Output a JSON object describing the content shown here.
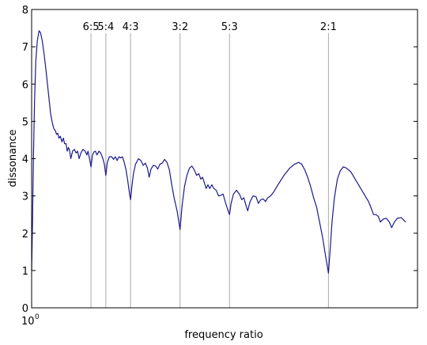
{
  "chart_data": {
    "type": "line",
    "title": "",
    "xlabel": "frequency ratio",
    "ylabel": "dissonance",
    "xlim": [
      1.0,
      2.3
    ],
    "ylim": [
      0,
      8
    ],
    "x_tick_label": "10",
    "x_tick_exponent": "0",
    "y_ticks": [
      0,
      1,
      2,
      3,
      4,
      5,
      6,
      7,
      8
    ],
    "y_tick_labels": [
      "0",
      "1",
      "2",
      "3",
      "4",
      "5",
      "6",
      "7",
      "8"
    ],
    "grid": false,
    "ratio_markers": [
      {
        "label": "6:5",
        "x": 1.2
      },
      {
        "label": "5:4",
        "x": 1.25
      },
      {
        "label": "4:3",
        "x": 1.3333
      },
      {
        "label": "3:2",
        "x": 1.5
      },
      {
        "label": "5:3",
        "x": 1.6667
      },
      {
        "label": "2:1",
        "x": 2.0
      }
    ],
    "series": [
      {
        "color": "#1a1a8c",
        "points": [
          [
            1.0,
            1.0
          ],
          [
            1.003,
            2.3
          ],
          [
            1.006,
            4.0
          ],
          [
            1.01,
            5.6
          ],
          [
            1.014,
            6.6
          ],
          [
            1.019,
            7.15
          ],
          [
            1.025,
            7.43
          ],
          [
            1.03,
            7.38
          ],
          [
            1.036,
            7.15
          ],
          [
            1.042,
            6.8
          ],
          [
            1.048,
            6.4
          ],
          [
            1.054,
            5.95
          ],
          [
            1.06,
            5.5
          ],
          [
            1.064,
            5.2
          ],
          [
            1.07,
            4.95
          ],
          [
            1.075,
            4.8
          ],
          [
            1.08,
            4.75
          ],
          [
            1.084,
            4.65
          ],
          [
            1.088,
            4.68
          ],
          [
            1.092,
            4.55
          ],
          [
            1.097,
            4.6
          ],
          [
            1.102,
            4.45
          ],
          [
            1.107,
            4.55
          ],
          [
            1.111,
            4.4
          ],
          [
            1.116,
            4.4
          ],
          [
            1.12,
            4.2
          ],
          [
            1.124,
            4.3
          ],
          [
            1.128,
            4.22
          ],
          [
            1.132,
            4.0
          ],
          [
            1.138,
            4.2
          ],
          [
            1.144,
            4.25
          ],
          [
            1.15,
            4.15
          ],
          [
            1.155,
            4.2
          ],
          [
            1.16,
            4.0
          ],
          [
            1.166,
            4.15
          ],
          [
            1.173,
            4.25
          ],
          [
            1.18,
            4.2
          ],
          [
            1.186,
            4.1
          ],
          [
            1.19,
            4.2
          ],
          [
            1.195,
            4.0
          ],
          [
            1.2,
            3.78
          ],
          [
            1.205,
            4.1
          ],
          [
            1.21,
            4.18
          ],
          [
            1.215,
            4.2
          ],
          [
            1.22,
            4.1
          ],
          [
            1.227,
            4.2
          ],
          [
            1.233,
            4.15
          ],
          [
            1.24,
            4.0
          ],
          [
            1.245,
            3.85
          ],
          [
            1.25,
            3.55
          ],
          [
            1.255,
            3.9
          ],
          [
            1.262,
            4.05
          ],
          [
            1.27,
            4.05
          ],
          [
            1.276,
            3.98
          ],
          [
            1.282,
            4.05
          ],
          [
            1.288,
            3.95
          ],
          [
            1.294,
            4.05
          ],
          [
            1.3,
            4.02
          ],
          [
            1.306,
            4.05
          ],
          [
            1.312,
            3.9
          ],
          [
            1.318,
            3.7
          ],
          [
            1.324,
            3.4
          ],
          [
            1.33,
            3.05
          ],
          [
            1.3333,
            2.9
          ],
          [
            1.337,
            3.2
          ],
          [
            1.343,
            3.6
          ],
          [
            1.35,
            3.85
          ],
          [
            1.36,
            4.0
          ],
          [
            1.368,
            3.95
          ],
          [
            1.376,
            3.82
          ],
          [
            1.383,
            3.88
          ],
          [
            1.39,
            3.75
          ],
          [
            1.396,
            3.5
          ],
          [
            1.402,
            3.72
          ],
          [
            1.41,
            3.82
          ],
          [
            1.418,
            3.8
          ],
          [
            1.425,
            3.72
          ],
          [
            1.432,
            3.85
          ],
          [
            1.44,
            3.88
          ],
          [
            1.448,
            3.98
          ],
          [
            1.456,
            3.9
          ],
          [
            1.464,
            3.7
          ],
          [
            1.472,
            3.3
          ],
          [
            1.48,
            2.95
          ],
          [
            1.49,
            2.6
          ],
          [
            1.5,
            2.1
          ],
          [
            1.507,
            2.75
          ],
          [
            1.515,
            3.25
          ],
          [
            1.523,
            3.55
          ],
          [
            1.532,
            3.75
          ],
          [
            1.54,
            3.8
          ],
          [
            1.548,
            3.7
          ],
          [
            1.556,
            3.55
          ],
          [
            1.563,
            3.6
          ],
          [
            1.57,
            3.45
          ],
          [
            1.576,
            3.5
          ],
          [
            1.582,
            3.35
          ],
          [
            1.588,
            3.2
          ],
          [
            1.594,
            3.3
          ],
          [
            1.6,
            3.2
          ],
          [
            1.607,
            3.3
          ],
          [
            1.614,
            3.2
          ],
          [
            1.622,
            3.15
          ],
          [
            1.63,
            3.0
          ],
          [
            1.638,
            3.02
          ],
          [
            1.645,
            3.05
          ],
          [
            1.652,
            2.85
          ],
          [
            1.66,
            2.65
          ],
          [
            1.6667,
            2.5
          ],
          [
            1.672,
            2.8
          ],
          [
            1.68,
            3.05
          ],
          [
            1.69,
            3.15
          ],
          [
            1.7,
            3.05
          ],
          [
            1.708,
            2.9
          ],
          [
            1.715,
            2.95
          ],
          [
            1.722,
            2.75
          ],
          [
            1.728,
            2.6
          ],
          [
            1.736,
            2.85
          ],
          [
            1.746,
            3.0
          ],
          [
            1.756,
            2.98
          ],
          [
            1.764,
            2.8
          ],
          [
            1.772,
            2.9
          ],
          [
            1.78,
            2.92
          ],
          [
            1.788,
            2.85
          ],
          [
            1.795,
            2.95
          ],
          [
            1.805,
            3.0
          ],
          [
            1.815,
            3.1
          ],
          [
            1.83,
            3.3
          ],
          [
            1.85,
            3.55
          ],
          [
            1.87,
            3.75
          ],
          [
            1.885,
            3.85
          ],
          [
            1.9,
            3.9
          ],
          [
            1.91,
            3.85
          ],
          [
            1.92,
            3.7
          ],
          [
            1.93,
            3.5
          ],
          [
            1.94,
            3.25
          ],
          [
            1.95,
            2.95
          ],
          [
            1.96,
            2.7
          ],
          [
            1.97,
            2.3
          ],
          [
            1.98,
            1.9
          ],
          [
            1.99,
            1.4
          ],
          [
            2.0,
            0.93
          ],
          [
            2.006,
            1.6
          ],
          [
            2.012,
            2.3
          ],
          [
            2.02,
            2.95
          ],
          [
            2.03,
            3.45
          ],
          [
            2.04,
            3.68
          ],
          [
            2.05,
            3.78
          ],
          [
            2.06,
            3.75
          ],
          [
            2.075,
            3.65
          ],
          [
            2.09,
            3.45
          ],
          [
            2.105,
            3.25
          ],
          [
            2.12,
            3.05
          ],
          [
            2.135,
            2.85
          ],
          [
            2.145,
            2.65
          ],
          [
            2.152,
            2.5
          ],
          [
            2.16,
            2.5
          ],
          [
            2.168,
            2.45
          ],
          [
            2.175,
            2.3
          ],
          [
            2.185,
            2.38
          ],
          [
            2.195,
            2.4
          ],
          [
            2.205,
            2.3
          ],
          [
            2.213,
            2.15
          ],
          [
            2.222,
            2.3
          ],
          [
            2.232,
            2.4
          ],
          [
            2.245,
            2.42
          ],
          [
            2.26,
            2.3
          ]
        ]
      }
    ]
  }
}
